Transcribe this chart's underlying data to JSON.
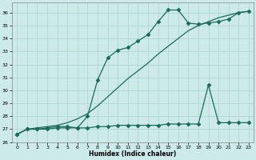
{
  "xlabel": "Humidex (Indice chaleur)",
  "background_color": "#cceae8",
  "grid_color": "#aad4d0",
  "line_color": "#1a6b5a",
  "xlim": [
    -0.5,
    23.5
  ],
  "ylim": [
    26,
    36.8
  ],
  "yticks": [
    26,
    27,
    28,
    29,
    30,
    31,
    32,
    33,
    34,
    35,
    36
  ],
  "xticks": [
    0,
    1,
    2,
    3,
    4,
    5,
    6,
    7,
    8,
    9,
    10,
    11,
    12,
    13,
    14,
    15,
    16,
    17,
    18,
    19,
    20,
    21,
    22,
    23
  ],
  "series": [
    {
      "x": [
        0,
        1,
        2,
        3,
        4,
        5,
        6,
        7,
        8,
        9,
        10,
        11,
        12,
        13,
        14,
        15,
        16,
        17,
        18,
        19,
        20,
        21,
        22,
        23
      ],
      "y": [
        26.6,
        27.0,
        27.0,
        27.1,
        27.2,
        27.2,
        27.1,
        28.0,
        30.8,
        32.5,
        33.1,
        33.3,
        33.8,
        34.3,
        35.3,
        36.2,
        36.2,
        35.2,
        35.1,
        35.2,
        35.3,
        35.5,
        36.0,
        36.1
      ],
      "marker": "D",
      "markersize": 2.5,
      "linestyle": "-",
      "linewidth": 0.9
    },
    {
      "x": [
        0,
        1,
        2,
        3,
        4,
        5,
        6,
        7,
        8,
        9,
        10,
        11,
        12,
        13,
        14,
        15,
        16,
        17,
        18,
        19,
        20,
        21,
        22,
        23
      ],
      "y": [
        26.6,
        27.0,
        27.1,
        27.2,
        27.3,
        27.5,
        27.8,
        28.2,
        28.8,
        29.5,
        30.2,
        30.9,
        31.5,
        32.1,
        32.8,
        33.4,
        34.0,
        34.6,
        35.0,
        35.3,
        35.6,
        35.8,
        36.0,
        36.1
      ],
      "marker": null,
      "markersize": 0,
      "linestyle": "-",
      "linewidth": 0.9
    },
    {
      "x": [
        0,
        1,
        2,
        3,
        4,
        5,
        6,
        7,
        8,
        9,
        10,
        11,
        12,
        13,
        14,
        15,
        16,
        17,
        18,
        19,
        20,
        21,
        22,
        23
      ],
      "y": [
        26.6,
        27.0,
        27.0,
        27.0,
        27.1,
        27.1,
        27.1,
        27.1,
        27.2,
        27.2,
        27.3,
        27.3,
        27.3,
        27.3,
        27.3,
        27.4,
        27.4,
        27.4,
        27.4,
        30.4,
        27.5,
        27.5,
        27.5,
        27.5
      ],
      "marker": "D",
      "markersize": 2.5,
      "linestyle": "-",
      "linewidth": 0.9
    }
  ]
}
